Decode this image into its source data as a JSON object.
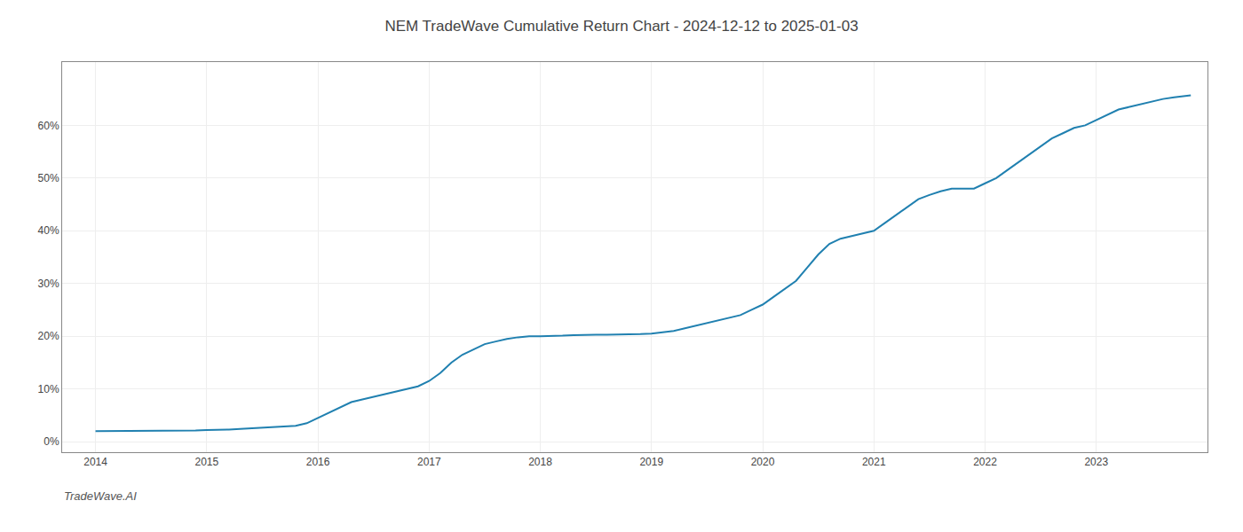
{
  "chart_data": {
    "type": "line",
    "title": "NEM TradeWave Cumulative Return Chart - 2024-12-12 to 2025-01-03",
    "annotations": [
      {
        "text": "TradeWave.AI"
      }
    ],
    "color": "#2080b0",
    "x": [
      2014.0,
      2014.1,
      2014.3,
      2014.5,
      2014.7,
      2014.9,
      2015.0,
      2015.1,
      2015.2,
      2015.3,
      2015.4,
      2015.5,
      2015.6,
      2015.7,
      2015.8,
      2015.9,
      2016.0,
      2016.1,
      2016.2,
      2016.3,
      2016.4,
      2016.5,
      2016.6,
      2016.7,
      2016.8,
      2016.9,
      2017.0,
      2017.1,
      2017.2,
      2017.3,
      2017.4,
      2017.5,
      2017.6,
      2017.7,
      2017.8,
      2017.9,
      2018.0,
      2018.1,
      2018.2,
      2018.3,
      2018.4,
      2018.5,
      2018.6,
      2018.7,
      2018.8,
      2018.9,
      2019.0,
      2019.1,
      2019.2,
      2019.3,
      2019.4,
      2019.5,
      2019.6,
      2019.7,
      2019.8,
      2019.9,
      2020.0,
      2020.1,
      2020.2,
      2020.3,
      2020.4,
      2020.5,
      2020.6,
      2020.7,
      2020.8,
      2020.9,
      2021.0,
      2021.1,
      2021.2,
      2021.3,
      2021.4,
      2021.5,
      2021.6,
      2021.7,
      2021.8,
      2021.9,
      2022.0,
      2022.1,
      2022.2,
      2022.3,
      2022.4,
      2022.5,
      2022.6,
      2022.7,
      2022.8,
      2022.9,
      2023.0,
      2023.1,
      2023.2,
      2023.3,
      2023.4,
      2023.5,
      2023.6,
      2023.7,
      2023.8,
      2023.85
    ],
    "values": [
      2.0,
      2.0,
      2.0,
      2.1,
      2.1,
      2.1,
      2.2,
      2.2,
      2.3,
      2.4,
      2.5,
      2.6,
      2.7,
      2.8,
      3.0,
      3.5,
      4.5,
      5.5,
      6.5,
      7.5,
      8.0,
      8.5,
      9.0,
      9.5,
      10.0,
      10.5,
      11.5,
      13.0,
      15.0,
      16.5,
      17.5,
      18.5,
      19.0,
      19.5,
      19.8,
      20.0,
      20.0,
      20.0,
      20.1,
      20.2,
      20.3,
      20.3,
      20.3,
      20.3,
      20.4,
      20.4,
      20.5,
      20.7,
      21.0,
      21.5,
      22.0,
      22.5,
      23.0,
      23.5,
      24.0,
      25.0,
      26.0,
      27.5,
      29.0,
      30.5,
      33.0,
      35.5,
      37.5,
      38.5,
      39.0,
      39.5,
      40.0,
      41.5,
      43.0,
      44.5,
      46.0,
      46.8,
      47.5,
      48.0,
      48.0,
      48.0,
      49.0,
      50.0,
      51.5,
      53.0,
      54.5,
      56.0,
      57.5,
      58.5,
      59.5,
      60.0,
      61.0,
      62.0,
      63.0,
      63.5,
      64.0,
      64.5,
      65.0,
      65.3,
      65.5,
      65.7
    ],
    "xlim": [
      2013.7,
      2024.0
    ],
    "xticks": [
      2014,
      2015,
      2016,
      2017,
      2018,
      2019,
      2020,
      2021,
      2022,
      2023
    ],
    "ylim": [
      -2,
      72
    ],
    "yticks": [
      {
        "value": 0,
        "label": "0%"
      },
      {
        "value": 10,
        "label": "10%"
      },
      {
        "value": 20,
        "label": "20%"
      },
      {
        "value": 30,
        "label": "30%"
      },
      {
        "value": 40,
        "label": "40%"
      },
      {
        "value": 50,
        "label": "50%"
      },
      {
        "value": 60,
        "label": "60%"
      }
    ],
    "grid": true
  }
}
